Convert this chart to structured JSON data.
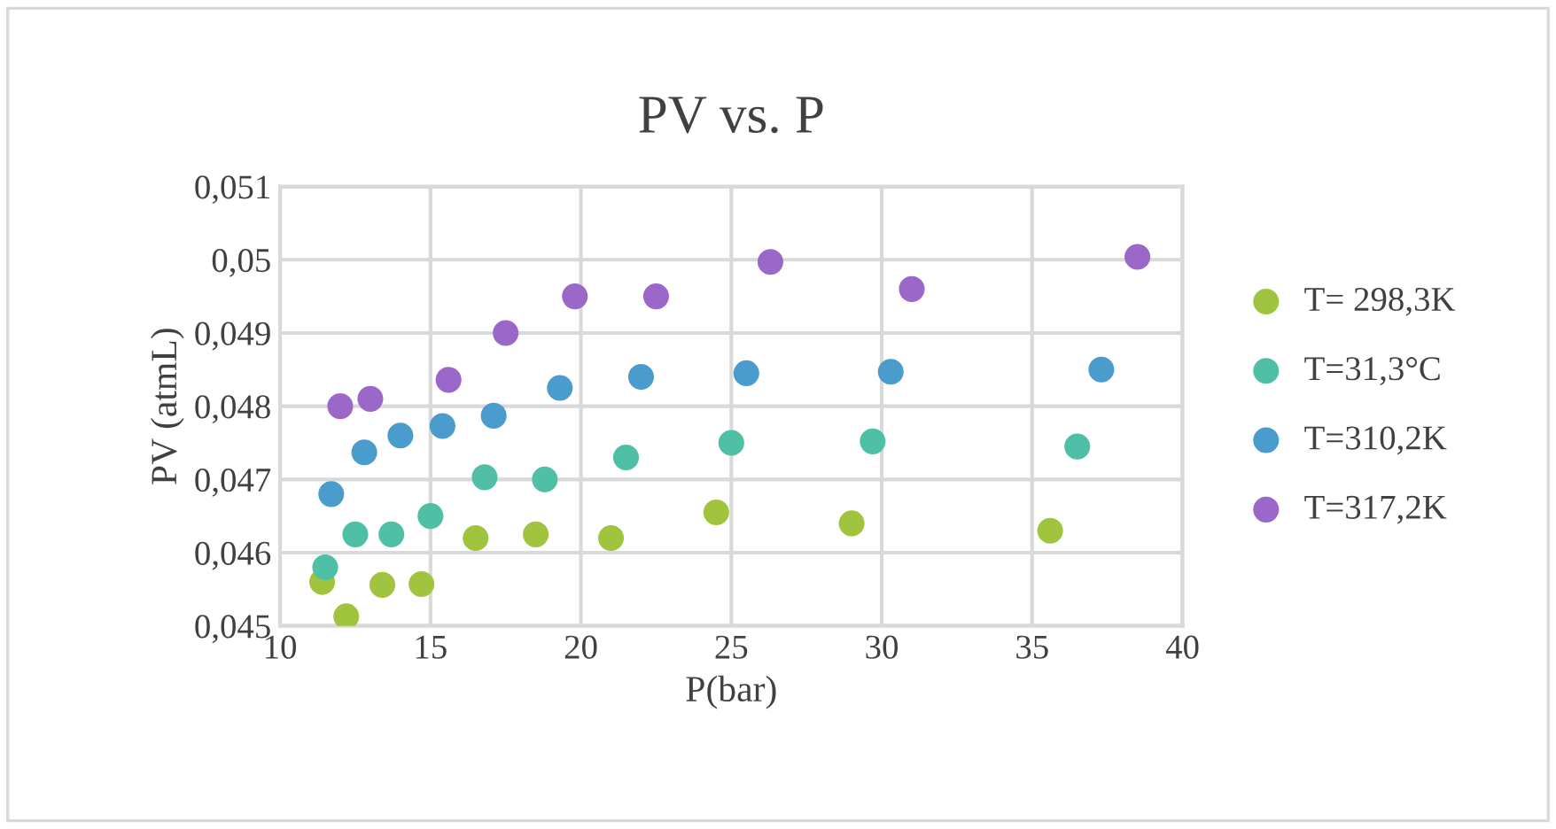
{
  "chart_data": {
    "type": "scatter",
    "title": "PV vs. P",
    "xlabel": "P(bar)",
    "ylabel": "PV (atmL)",
    "xlim": [
      10,
      40
    ],
    "xticks": [
      10,
      15,
      20,
      25,
      30,
      35,
      40
    ],
    "ylim": [
      0.045,
      0.051
    ],
    "yticks": [
      {
        "value": 0.045,
        "label": "0,045"
      },
      {
        "value": 0.046,
        "label": "0,046"
      },
      {
        "value": 0.047,
        "label": "0,047"
      },
      {
        "value": 0.048,
        "label": "0,048"
      },
      {
        "value": 0.049,
        "label": "0,049"
      },
      {
        "value": 0.05,
        "label": "0,05"
      },
      {
        "value": 0.051,
        "label": "0,051"
      }
    ],
    "grid": true,
    "legend": "right",
    "marker": "circle",
    "series": [
      {
        "name": "T= 298,3K",
        "color": "#a0c43e",
        "x": [
          11.4,
          12.2,
          13.4,
          14.7,
          16.5,
          18.5,
          21,
          24.5,
          29,
          35.6
        ],
        "values": [
          0.0456,
          0.04513,
          0.04556,
          0.04557,
          0.0462,
          0.04625,
          0.0462,
          0.04655,
          0.0464,
          0.0463
        ]
      },
      {
        "name": "T=31,3°C",
        "color": "#4fbfa5",
        "x": [
          11.5,
          12.5,
          13.7,
          15,
          16.8,
          18.8,
          21.5,
          25,
          29.7,
          36.5
        ],
        "values": [
          0.0458,
          0.04625,
          0.04625,
          0.0465,
          0.04703,
          0.047,
          0.0473,
          0.0475,
          0.04752,
          0.04745
        ]
      },
      {
        "name": "T=310,2K",
        "color": "#4a9ccc",
        "x": [
          11.7,
          12.8,
          14,
          15.4,
          17.1,
          19.3,
          22,
          25.5,
          30.3,
          37.3
        ],
        "values": [
          0.0468,
          0.04737,
          0.0476,
          0.04773,
          0.04787,
          0.04825,
          0.0484,
          0.04845,
          0.04847,
          0.0485
        ]
      },
      {
        "name": "T=317,2K",
        "color": "#9b67c9",
        "x": [
          12,
          13,
          15.6,
          17.5,
          19.8,
          22.5,
          26.3,
          31,
          38.5
        ],
        "values": [
          0.048,
          0.0481,
          0.04836,
          0.049,
          0.0495,
          0.0495,
          0.04997,
          0.0496,
          0.05004
        ]
      }
    ]
  }
}
